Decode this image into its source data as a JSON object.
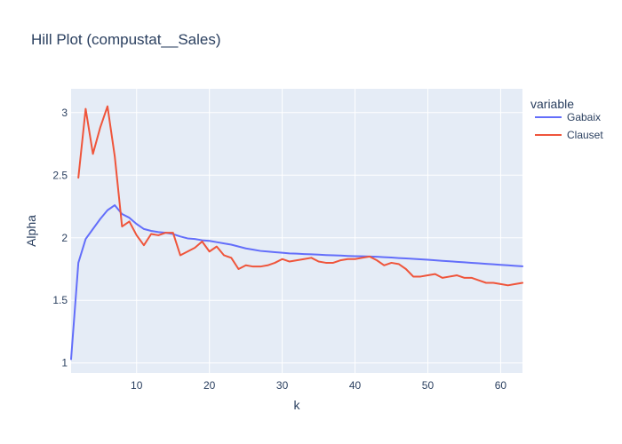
{
  "chart_data": {
    "type": "line",
    "title": "Hill Plot (compustat__Sales)",
    "xlabel": "k",
    "ylabel": "Alpha",
    "xlim": [
      1,
      63
    ],
    "ylim": [
      0.92,
      3.19
    ],
    "xticks": [
      10,
      20,
      30,
      40,
      50,
      60
    ],
    "yticks": [
      1,
      1.5,
      2,
      2.5,
      3
    ],
    "grid": true,
    "legend_title": "variable",
    "legend_position": "top-right outside",
    "series": [
      {
        "name": "Gabaix",
        "color": "#636efa",
        "x": [
          1,
          2,
          3,
          4,
          5,
          6,
          7,
          8,
          9,
          10,
          11,
          12,
          13,
          14,
          15,
          16,
          17,
          18,
          19,
          20,
          21,
          22,
          23,
          24,
          25,
          26,
          27,
          28,
          29,
          30,
          31,
          32,
          33,
          34,
          35,
          36,
          37,
          38,
          39,
          40,
          41,
          42,
          43,
          44,
          45,
          46,
          47,
          48,
          49,
          50,
          51,
          52,
          53,
          54,
          55,
          56,
          57,
          58,
          59,
          60,
          61,
          62,
          63
        ],
        "values": [
          1.03,
          1.8,
          1.99,
          2.07,
          2.15,
          2.22,
          2.26,
          2.19,
          2.16,
          2.11,
          2.07,
          2.055,
          2.045,
          2.04,
          2.03,
          2.01,
          1.995,
          1.99,
          1.98,
          1.975,
          1.965,
          1.955,
          1.945,
          1.93,
          1.915,
          1.905,
          1.895,
          1.89,
          1.885,
          1.88,
          1.875,
          1.873,
          1.87,
          1.868,
          1.865,
          1.862,
          1.86,
          1.858,
          1.855,
          1.853,
          1.852,
          1.85,
          1.848,
          1.845,
          1.842,
          1.838,
          1.835,
          1.832,
          1.828,
          1.824,
          1.82,
          1.816,
          1.812,
          1.808,
          1.804,
          1.8,
          1.796,
          1.792,
          1.788,
          1.784,
          1.78,
          1.776,
          1.772
        ]
      },
      {
        "name": "Clauset",
        "color": "#ef553b",
        "x": [
          2,
          3,
          4,
          5,
          6,
          7,
          8,
          9,
          10,
          11,
          12,
          13,
          14,
          15,
          16,
          17,
          18,
          19,
          20,
          21,
          22,
          23,
          24,
          25,
          26,
          27,
          28,
          29,
          30,
          31,
          32,
          33,
          34,
          35,
          36,
          37,
          38,
          39,
          40,
          41,
          42,
          43,
          44,
          45,
          46,
          47,
          48,
          49,
          50,
          51,
          52,
          53,
          54,
          55,
          56,
          57,
          58,
          59,
          60,
          61,
          62,
          63
        ],
        "values": [
          2.48,
          3.03,
          2.67,
          2.88,
          3.05,
          2.65,
          2.09,
          2.13,
          2.02,
          1.94,
          2.03,
          2.02,
          2.04,
          2.04,
          1.86,
          1.89,
          1.92,
          1.97,
          1.89,
          1.93,
          1.86,
          1.84,
          1.75,
          1.78,
          1.77,
          1.77,
          1.78,
          1.8,
          1.83,
          1.81,
          1.82,
          1.83,
          1.84,
          1.81,
          1.8,
          1.8,
          1.82,
          1.83,
          1.83,
          1.84,
          1.85,
          1.82,
          1.78,
          1.8,
          1.79,
          1.75,
          1.69,
          1.69,
          1.7,
          1.71,
          1.68,
          1.69,
          1.7,
          1.68,
          1.68,
          1.66,
          1.64,
          1.64,
          1.63,
          1.62,
          1.63,
          1.64
        ]
      }
    ]
  }
}
